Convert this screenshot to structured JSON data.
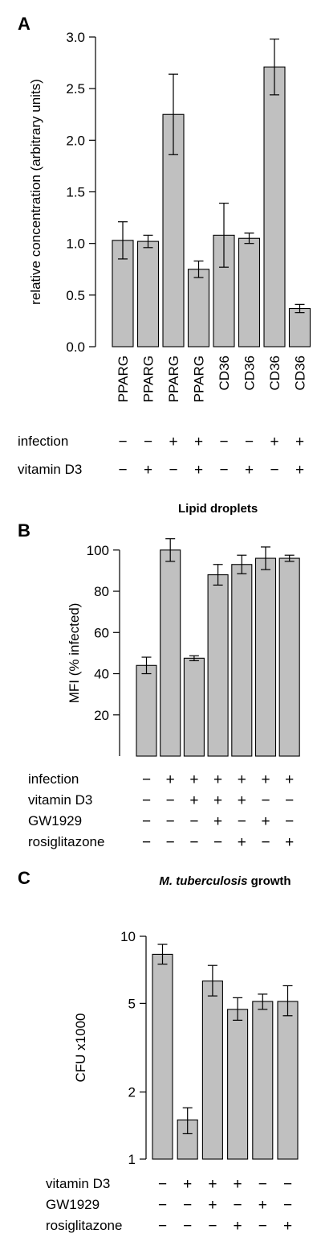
{
  "chart_data": [
    {
      "type": "bar",
      "panel": "A",
      "title": "",
      "xlabel": "",
      "ylabel": "relative concentration (arbitrary units)",
      "ylim": [
        0,
        3.0
      ],
      "yscale": "linear",
      "yticks": [
        "0.0",
        "0.5",
        "1.0",
        "1.5",
        "2.0",
        "2.5",
        "3.0"
      ],
      "categories": [
        "PPARG",
        "PPARG",
        "PPARG",
        "PPARG",
        "CD36",
        "CD36",
        "CD36",
        "CD36"
      ],
      "values": [
        1.03,
        1.02,
        2.25,
        0.75,
        1.08,
        1.05,
        2.71,
        0.37
      ],
      "errors": [
        0.18,
        0.06,
        0.39,
        0.08,
        0.31,
        0.05,
        0.27,
        0.04
      ],
      "bar_color": "#c0c0c0",
      "grid": false,
      "conditions": [
        {
          "label": "infection",
          "signs": [
            "−",
            "−",
            "+",
            "+",
            "−",
            "−",
            "+",
            "+"
          ]
        },
        {
          "label": "vitamin D3",
          "signs": [
            "−",
            "+",
            "−",
            "+",
            "−",
            "+",
            "−",
            "+"
          ]
        }
      ]
    },
    {
      "type": "bar",
      "panel": "B",
      "title": "Lipid droplets",
      "xlabel": "",
      "ylabel": "MFI (% infected)",
      "ylim": [
        0,
        105
      ],
      "yscale": "linear",
      "yticks": [
        "20",
        "40",
        "60",
        "80",
        "100"
      ],
      "values": [
        44,
        100,
        47.5,
        88,
        93,
        96,
        96
      ],
      "errors": [
        4,
        5.5,
        1.2,
        5,
        4.5,
        5.5,
        1.5
      ],
      "bar_color": "#c0c0c0",
      "grid": false,
      "conditions": [
        {
          "label": "infection",
          "signs": [
            "−",
            "+",
            "+",
            "+",
            "+",
            "+",
            "+"
          ]
        },
        {
          "label": "vitamin D3",
          "signs": [
            "−",
            "−",
            "+",
            "+",
            "+",
            "−",
            "−"
          ]
        },
        {
          "label": "GW1929",
          "signs": [
            "−",
            "−",
            "−",
            "+",
            "−",
            "+",
            "−"
          ]
        },
        {
          "label": "rosiglitazone",
          "signs": [
            "−",
            "−",
            "−",
            "−",
            "+",
            "−",
            "+"
          ]
        }
      ]
    },
    {
      "type": "bar",
      "panel": "C",
      "title": "M. tuberculosis growth",
      "title_italic_part": "M. tuberculosis",
      "title_plain_part": "growth",
      "xlabel": "",
      "ylabel": "CFU x1000",
      "ylim": [
        1,
        10
      ],
      "yscale": "log",
      "yticks": [
        "1",
        "2",
        "5",
        "10"
      ],
      "values": [
        8.3,
        1.5,
        6.3,
        4.7,
        5.1,
        5.1
      ],
      "err_low": [
        7.5,
        1.3,
        5.4,
        4.2,
        4.7,
        4.4
      ],
      "err_high": [
        9.2,
        1.7,
        7.4,
        5.3,
        5.5,
        6.0
      ],
      "bar_color": "#c0c0c0",
      "grid": false,
      "conditions": [
        {
          "label": "vitamin D3",
          "signs": [
            "−",
            "+",
            "+",
            "+",
            "−",
            "−"
          ]
        },
        {
          "label": "GW1929",
          "signs": [
            "−",
            "−",
            "+",
            "−",
            "+",
            "−"
          ]
        },
        {
          "label": "rosiglitazone",
          "signs": [
            "−",
            "−",
            "−",
            "+",
            "−",
            "+"
          ]
        }
      ]
    }
  ]
}
